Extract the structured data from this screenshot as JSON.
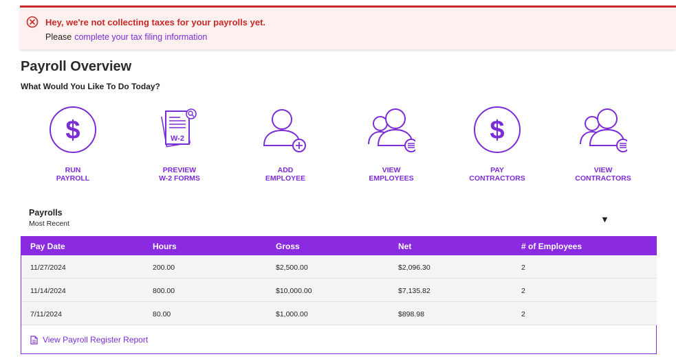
{
  "alert": {
    "title": "Hey, we're not collecting taxes for your payrolls yet.",
    "prefix": "Please",
    "link": "complete your tax filing information",
    "icon": "error-circle-x-icon",
    "color": "#c62828"
  },
  "page": {
    "title": "Payroll Overview",
    "subtitle": "What Would You Like To Do Today?"
  },
  "actions": [
    {
      "icon": "dollar-circle-icon",
      "line1": "RUN",
      "line2": "PAYROLL"
    },
    {
      "icon": "w2-document-icon",
      "line1": "PREVIEW",
      "line2": "W-2 FORMS",
      "badge": "W-2"
    },
    {
      "icon": "add-person-icon",
      "line1": "ADD",
      "line2": "EMPLOYEE"
    },
    {
      "icon": "people-list-icon",
      "line1": "VIEW",
      "line2": "EMPLOYEES"
    },
    {
      "icon": "dollar-circle-icon",
      "line1": "PAY",
      "line2": "CONTRACTORS"
    },
    {
      "icon": "people-list-icon",
      "line1": "VIEW",
      "line2": "CONTRACTORS"
    }
  ],
  "payrolls": {
    "title": "Payrolls",
    "filter": "Most Recent",
    "dropdown_icon": "triangle-down-icon",
    "columns": [
      "Pay Date",
      "Hours",
      "Gross",
      "Net",
      "# of Employees"
    ],
    "rows": [
      [
        "11/27/2024",
        "200.00",
        "$2,500.00",
        "$2,096.30",
        "2"
      ],
      [
        "11/14/2024",
        "800.00",
        "$10,000.00",
        "$7,135.82",
        "2"
      ],
      [
        "7/11/2024",
        "80.00",
        "$1,000.00",
        "$898.98",
        "2"
      ]
    ],
    "report_link": "View Payroll Register Report"
  },
  "colors": {
    "accent": "#8a2be2",
    "link": "#7b2cd6",
    "alert_bg": "#fdf1f0"
  }
}
